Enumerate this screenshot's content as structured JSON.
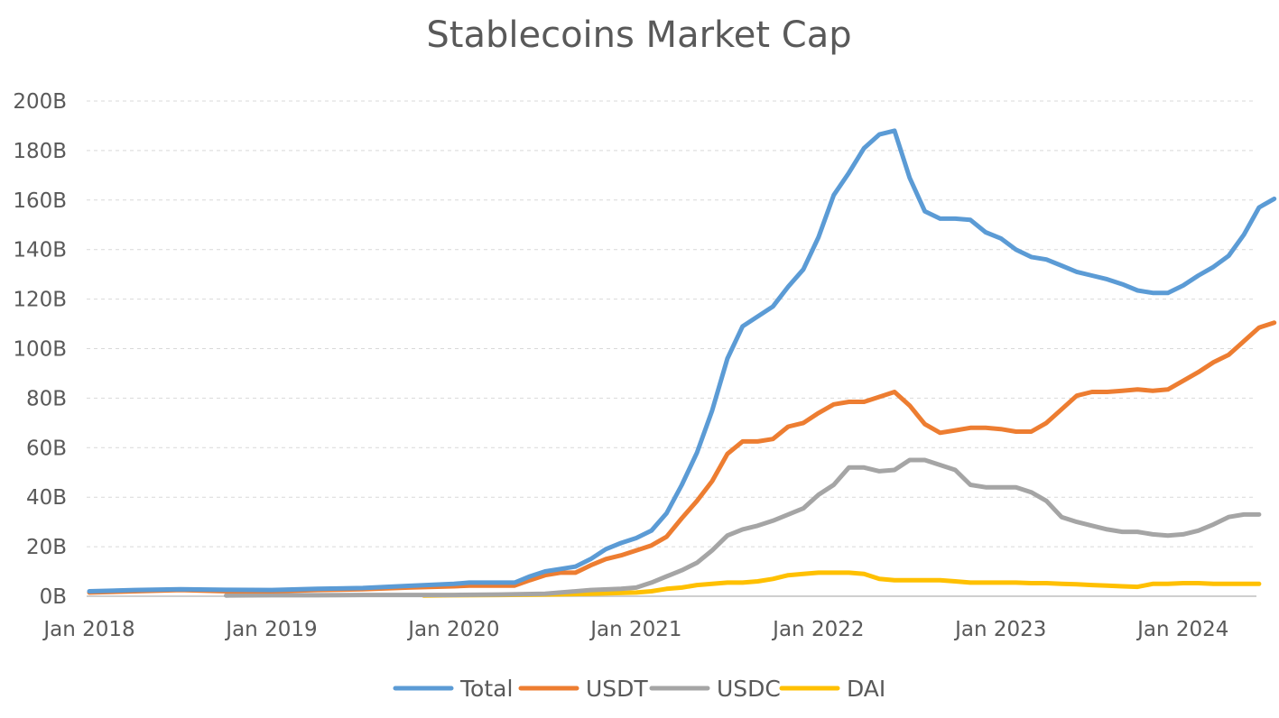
{
  "chart_data": {
    "type": "line",
    "title": "Stablecoins Market Cap",
    "xlabel": "",
    "ylabel": "",
    "ylim": [
      0,
      200
    ],
    "y_ticks": [
      "0B",
      "20B",
      "40B",
      "60B",
      "80B",
      "100B",
      "120B",
      "140B",
      "160B",
      "180B",
      "200B"
    ],
    "x_ticks": [
      "Jan 2018",
      "Jan 2019",
      "Jan 2020",
      "Jan 2021",
      "Jan 2022",
      "Jan 2023",
      "Jan 2024"
    ],
    "x_tick_values": [
      "2018-01",
      "2019-01",
      "2020-01",
      "2021-01",
      "2022-01",
      "2023-01",
      "2024-01"
    ],
    "grid": true,
    "legend_position": "bottom",
    "series": [
      {
        "name": "Total",
        "color": "#5b9bd5",
        "points": [
          [
            "2018-01",
            2.0
          ],
          [
            "2018-04",
            2.5
          ],
          [
            "2018-07",
            2.8
          ],
          [
            "2018-10",
            2.6
          ],
          [
            "2019-01",
            2.5
          ],
          [
            "2019-04",
            3.0
          ],
          [
            "2019-07",
            3.3
          ],
          [
            "2019-10",
            4.2
          ],
          [
            "2020-01",
            5.0
          ],
          [
            "2020-02",
            5.5
          ],
          [
            "2020-03",
            5.5
          ],
          [
            "2020-04",
            5.5
          ],
          [
            "2020-05",
            5.5
          ],
          [
            "2020-06",
            8.0
          ],
          [
            "2020-07",
            10.0
          ],
          [
            "2020-08",
            11.0
          ],
          [
            "2020-09",
            12.0
          ],
          [
            "2020-10",
            15.0
          ],
          [
            "2020-11",
            19.0
          ],
          [
            "2020-12",
            21.5
          ],
          [
            "2021-01",
            23.5
          ],
          [
            "2021-02",
            26.5
          ],
          [
            "2021-03",
            33.5
          ],
          [
            "2021-04",
            45.0
          ],
          [
            "2021-05",
            58.0
          ],
          [
            "2021-06",
            75.0
          ],
          [
            "2021-07",
            96.0
          ],
          [
            "2021-08",
            109.0
          ],
          [
            "2021-09",
            113.0
          ],
          [
            "2021-10",
            117.0
          ],
          [
            "2021-11",
            125.0
          ],
          [
            "2021-12",
            132.0
          ],
          [
            "2022-01",
            145.0
          ],
          [
            "2022-02",
            162.0
          ],
          [
            "2022-03",
            171.0
          ],
          [
            "2022-04",
            181.0
          ],
          [
            "2022-05",
            186.5
          ],
          [
            "2022-06",
            188.0
          ],
          [
            "2022-07",
            169.0
          ],
          [
            "2022-08",
            155.5
          ],
          [
            "2022-09",
            152.5
          ],
          [
            "2022-10",
            152.5
          ],
          [
            "2022-11",
            152.0
          ],
          [
            "2022-12",
            147.0
          ],
          [
            "2023-01",
            144.5
          ],
          [
            "2023-02",
            140.0
          ],
          [
            "2023-03",
            137.0
          ],
          [
            "2023-04",
            136.0
          ],
          [
            "2023-05",
            133.5
          ],
          [
            "2023-06",
            131.0
          ],
          [
            "2023-07",
            129.5
          ],
          [
            "2023-08",
            128.0
          ],
          [
            "2023-09",
            126.0
          ],
          [
            "2023-10",
            123.5
          ],
          [
            "2023-11",
            122.5
          ],
          [
            "2023-12",
            122.5
          ],
          [
            "2024-01",
            125.5
          ],
          [
            "2024-02",
            129.5
          ],
          [
            "2024-03",
            133.0
          ],
          [
            "2024-04",
            137.5
          ],
          [
            "2024-05",
            146.0
          ],
          [
            "2024-06",
            157.0
          ],
          [
            "2024-07",
            160.5
          ]
        ]
      },
      {
        "name": "USDT",
        "color": "#ed7d31",
        "points": [
          [
            "2018-01",
            1.5
          ],
          [
            "2018-04",
            2.0
          ],
          [
            "2018-07",
            2.5
          ],
          [
            "2018-10",
            2.0
          ],
          [
            "2019-01",
            2.0
          ],
          [
            "2019-04",
            2.5
          ],
          [
            "2019-07",
            2.8
          ],
          [
            "2019-10",
            3.5
          ],
          [
            "2020-01",
            4.0
          ],
          [
            "2020-02",
            4.3
          ],
          [
            "2020-03",
            4.3
          ],
          [
            "2020-04",
            4.3
          ],
          [
            "2020-05",
            4.3
          ],
          [
            "2020-06",
            6.5
          ],
          [
            "2020-07",
            8.5
          ],
          [
            "2020-08",
            9.5
          ],
          [
            "2020-09",
            9.5
          ],
          [
            "2020-10",
            12.5
          ],
          [
            "2020-11",
            15.0
          ],
          [
            "2020-12",
            16.5
          ],
          [
            "2021-01",
            18.5
          ],
          [
            "2021-02",
            20.5
          ],
          [
            "2021-03",
            24.0
          ],
          [
            "2021-04",
            31.5
          ],
          [
            "2021-05",
            38.5
          ],
          [
            "2021-06",
            46.5
          ],
          [
            "2021-07",
            57.5
          ],
          [
            "2021-08",
            62.5
          ],
          [
            "2021-09",
            62.5
          ],
          [
            "2021-10",
            63.5
          ],
          [
            "2021-11",
            68.5
          ],
          [
            "2021-12",
            70.0
          ],
          [
            "2022-01",
            74.0
          ],
          [
            "2022-02",
            77.5
          ],
          [
            "2022-03",
            78.5
          ],
          [
            "2022-04",
            78.5
          ],
          [
            "2022-05",
            80.5
          ],
          [
            "2022-06",
            82.5
          ],
          [
            "2022-07",
            77.0
          ],
          [
            "2022-08",
            69.5
          ],
          [
            "2022-09",
            66.0
          ],
          [
            "2022-10",
            67.0
          ],
          [
            "2022-11",
            68.0
          ],
          [
            "2022-12",
            68.0
          ],
          [
            "2023-01",
            67.5
          ],
          [
            "2023-02",
            66.5
          ],
          [
            "2023-03",
            66.5
          ],
          [
            "2023-04",
            70.0
          ],
          [
            "2023-05",
            75.5
          ],
          [
            "2023-06",
            81.0
          ],
          [
            "2023-07",
            82.5
          ],
          [
            "2023-08",
            82.5
          ],
          [
            "2023-09",
            83.0
          ],
          [
            "2023-10",
            83.5
          ],
          [
            "2023-11",
            83.0
          ],
          [
            "2023-12",
            83.5
          ],
          [
            "2024-01",
            87.0
          ],
          [
            "2024-02",
            90.5
          ],
          [
            "2024-03",
            94.5
          ],
          [
            "2024-04",
            97.5
          ],
          [
            "2024-05",
            103.0
          ],
          [
            "2024-06",
            108.5
          ],
          [
            "2024-07",
            110.5
          ]
        ]
      },
      {
        "name": "USDC",
        "color": "#a5a5a5",
        "points": [
          [
            "2018-10",
            0.3
          ],
          [
            "2019-01",
            0.4
          ],
          [
            "2019-04",
            0.4
          ],
          [
            "2019-07",
            0.5
          ],
          [
            "2019-10",
            0.5
          ],
          [
            "2020-01",
            0.5
          ],
          [
            "2020-04",
            0.7
          ],
          [
            "2020-07",
            1.0
          ],
          [
            "2020-10",
            2.5
          ],
          [
            "2020-12",
            3.0
          ],
          [
            "2021-01",
            3.5
          ],
          [
            "2021-02",
            5.5
          ],
          [
            "2021-03",
            8.0
          ],
          [
            "2021-04",
            10.5
          ],
          [
            "2021-05",
            13.5
          ],
          [
            "2021-06",
            18.5
          ],
          [
            "2021-07",
            24.5
          ],
          [
            "2021-08",
            27.0
          ],
          [
            "2021-09",
            28.5
          ],
          [
            "2021-10",
            30.5
          ],
          [
            "2021-11",
            33.0
          ],
          [
            "2021-12",
            35.5
          ],
          [
            "2022-01",
            41.0
          ],
          [
            "2022-02",
            45.0
          ],
          [
            "2022-03",
            52.0
          ],
          [
            "2022-04",
            52.0
          ],
          [
            "2022-05",
            50.5
          ],
          [
            "2022-06",
            51.0
          ],
          [
            "2022-07",
            55.0
          ],
          [
            "2022-08",
            55.0
          ],
          [
            "2022-09",
            53.0
          ],
          [
            "2022-10",
            51.0
          ],
          [
            "2022-11",
            45.0
          ],
          [
            "2022-12",
            44.0
          ],
          [
            "2023-01",
            44.0
          ],
          [
            "2023-02",
            44.0
          ],
          [
            "2023-03",
            42.0
          ],
          [
            "2023-04",
            38.5
          ],
          [
            "2023-05",
            32.0
          ],
          [
            "2023-06",
            30.0
          ],
          [
            "2023-07",
            28.5
          ],
          [
            "2023-08",
            27.0
          ],
          [
            "2023-09",
            26.0
          ],
          [
            "2023-10",
            26.0
          ],
          [
            "2023-11",
            25.0
          ],
          [
            "2023-12",
            24.5
          ],
          [
            "2024-01",
            25.0
          ],
          [
            "2024-02",
            26.5
          ],
          [
            "2024-03",
            29.0
          ],
          [
            "2024-04",
            32.0
          ],
          [
            "2024-05",
            33.0
          ],
          [
            "2024-06",
            33.0
          ]
        ]
      },
      {
        "name": "DAI",
        "color": "#ffc000",
        "points": [
          [
            "2019-11",
            0.3
          ],
          [
            "2020-01",
            0.4
          ],
          [
            "2020-04",
            0.5
          ],
          [
            "2020-07",
            0.7
          ],
          [
            "2020-10",
            1.0
          ],
          [
            "2021-01",
            1.5
          ],
          [
            "2021-02",
            2.0
          ],
          [
            "2021-03",
            3.0
          ],
          [
            "2021-04",
            3.5
          ],
          [
            "2021-05",
            4.5
          ],
          [
            "2021-06",
            5.0
          ],
          [
            "2021-07",
            5.5
          ],
          [
            "2021-08",
            5.5
          ],
          [
            "2021-09",
            6.0
          ],
          [
            "2021-10",
            7.0
          ],
          [
            "2021-11",
            8.5
          ],
          [
            "2021-12",
            9.0
          ],
          [
            "2022-01",
            9.5
          ],
          [
            "2022-02",
            9.5
          ],
          [
            "2022-03",
            9.5
          ],
          [
            "2022-04",
            9.0
          ],
          [
            "2022-05",
            7.0
          ],
          [
            "2022-06",
            6.5
          ],
          [
            "2022-07",
            6.5
          ],
          [
            "2022-08",
            6.5
          ],
          [
            "2022-09",
            6.5
          ],
          [
            "2022-10",
            6.0
          ],
          [
            "2022-11",
            5.5
          ],
          [
            "2022-12",
            5.5
          ],
          [
            "2023-01",
            5.5
          ],
          [
            "2023-02",
            5.5
          ],
          [
            "2023-03",
            5.3
          ],
          [
            "2023-04",
            5.3
          ],
          [
            "2023-05",
            5.0
          ],
          [
            "2023-06",
            4.8
          ],
          [
            "2023-07",
            4.5
          ],
          [
            "2023-08",
            4.3
          ],
          [
            "2023-09",
            4.0
          ],
          [
            "2023-10",
            3.8
          ],
          [
            "2023-11",
            5.0
          ],
          [
            "2023-12",
            5.0
          ],
          [
            "2024-01",
            5.3
          ],
          [
            "2024-02",
            5.3
          ],
          [
            "2024-03",
            5.0
          ],
          [
            "2024-04",
            5.0
          ],
          [
            "2024-05",
            5.0
          ],
          [
            "2024-06",
            5.0
          ]
        ]
      }
    ]
  }
}
